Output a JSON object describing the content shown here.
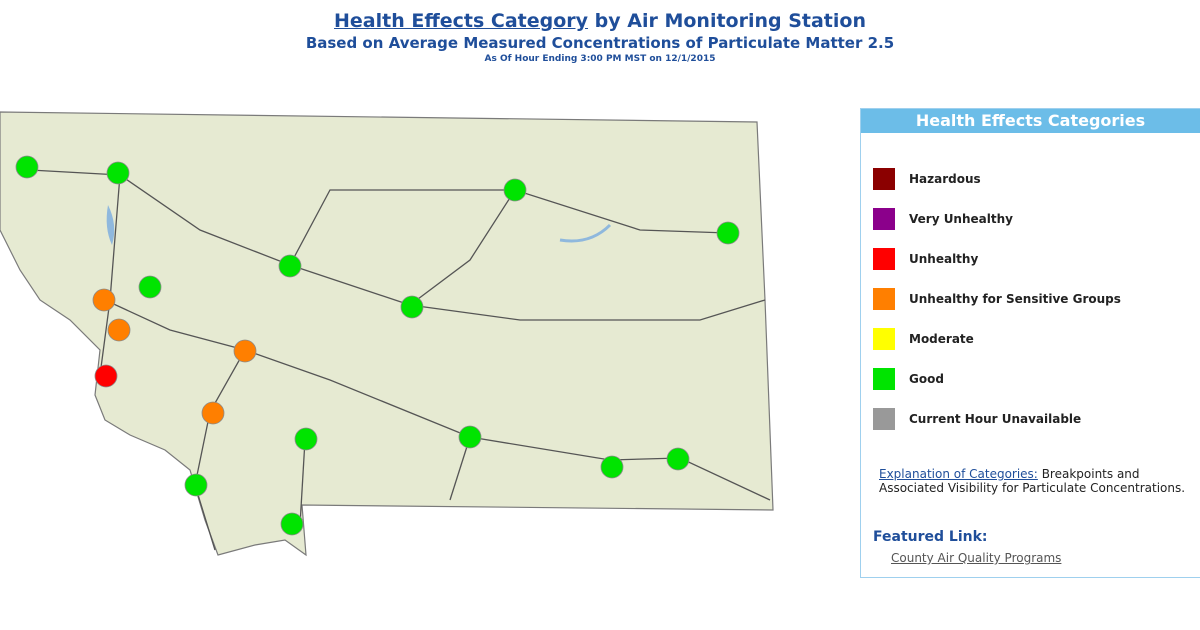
{
  "header": {
    "title_link": "Health Effects Category",
    "title_rest": "by Air Monitoring Station",
    "subtitle": "Based on Average Measured Concentrations of Particulate Matter 2.5",
    "timestamp": "As Of Hour Ending 3:00 PM MST on 12/1/2015"
  },
  "legend": {
    "title": "Health Effects Categories",
    "items": [
      {
        "label": "Hazardous",
        "color": "#8b0000"
      },
      {
        "label": "Very Unhealthy",
        "color": "#8b008b"
      },
      {
        "label": "Unhealthy",
        "color": "#ff0000"
      },
      {
        "label": "Unhealthy for Sensitive Groups",
        "color": "#ff7f00"
      },
      {
        "label": "Moderate",
        "color": "#ffff00"
      },
      {
        "label": "Good",
        "color": "#00e400"
      },
      {
        "label": "Current Hour Unavailable",
        "color": "#999999"
      }
    ]
  },
  "explanation": {
    "link": "Explanation of Categories:",
    "text": "Breakpoints and Associated Visibility for Particulate Concentrations."
  },
  "featured": {
    "title": "Featured Link:",
    "link": "County Air Quality Programs"
  }
}
